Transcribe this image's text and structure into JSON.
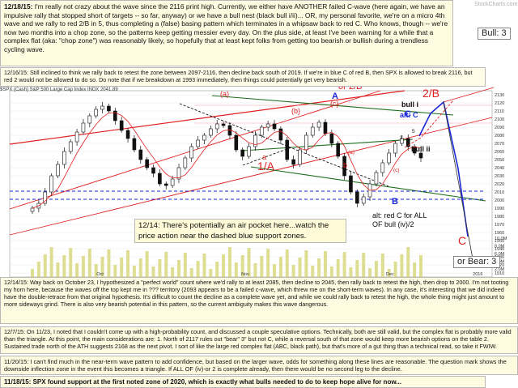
{
  "notes": {
    "top": {
      "date": "12/18/15:",
      "text": " I'm really not crazy about the wave since the 2116 print high.  Currently, we either have ANOTHER failed C-wave (here again, we have an impulsive rally that stopped short of targets -- so far, anyway) or we have a bull nest (black bull i/ii)... OR, my personal favorite, we're on a micro 4th wave and we rally to red 2/B in 5, thus completing a (false) basing pattern which terminates in a whipsaw back to red C.  Who knows, though -- we're now two months into a chop zone, so the patterns keep getting messier every day.  On the plus side, at least I've been warning for a while that a complex flat (aka: \"chop zone\") was reasonably likely, so hopefully that at least kept folks from getting too bearish or bullish during a trendless cycling wave."
    },
    "n1216": {
      "date": "12/16/15:",
      "text": " Still inclined to think we rally back to retest the zone between 2097-2116, then decline back south of 2019.  If we're in blue C of red B, then SPX is allowed to break 2116, but red 2 would not be allowed to do so.  Do note that if we breakdown at 1993 immediately, then things could potentially get very bearish."
    },
    "n1214": {
      "text": "12/14:  There's potentially an air pocket here...watch the price action near the dashed blue support zones."
    },
    "a": {
      "date": "12/14/15:",
      "text": " Way back on October 23, I hypothesized a \"perfect world\" count where we'd rally to at least 2085, then decline to 2045, then rally back to retest the high, then drop to 2000. I'm not tooting my horn here, because the waves off the top kept me in ??? territory (2093 appears to be a failed c-wave, which threw me on the short-term waves).  In any case, it's interesting that we did indeed have the double-retrace from that original hypothesis.  It's difficult to count the decline as a complete wave yet, and while we could rally back to retest the high, the whole thing might just amount to more sideways grind.  There is also very bearish potential in this pattern, so the current ambiguity makes this wave dangerous."
    },
    "b": {
      "date": "12/7/15:",
      "text": " On 11/23, I noted that I couldn't come up with a high-probability count, and discussed a couple speculative options.  Technically, both are still valid, but the complex flat is probably more valid than the triangle.  At this point, the main considerations are:  1.  North of 2117 rules out \"bear\" 3\" but not C, while a reversal south of that zone would keep more bearish options on the table 2. Sustained trade north of the ATH suggests 2168 as the next pivot.  I sort of like the large red complex flat (ABC, black path), but that's more of a gut thing than a technical read, so take it FWIW."
    },
    "c": {
      "date": "11/20/15:",
      "text": " I can't find much in the near-term wave pattern to add confidence, but based on the larger wave, odds for something along these lines are reasonable.  The question mark shows the downside inflection zone in the event this becomes a triangle.  If ALL OF (iv)-or 2 is complete already, then there would be no second leg to the decline."
    },
    "d": {
      "date": "11/18/15:",
      "text": "  SPX found support at the first noted zone of 2020, which is exactly what bulls needed to do to keep hope alive for now..."
    }
  },
  "header_text": "$SPX (Cash) S&P 500 Large Cap Index INDX",
  "header_price": "2041.89",
  "watermark": "StockCharts.com",
  "labels": {
    "bull3": "Bull: 3",
    "bear3": "or Bear: 3",
    "or2b_top": "2/B",
    "or2b": "or 2/B",
    "blueA": "A",
    "red_a_paren": "(a)",
    "red_b_paren": "(b)",
    "red_c_paren": "(c)",
    "red_1a": "1/A",
    "red_C": "C",
    "red_b_small": "b",
    "red_a_small": "a",
    "blue_c_top": "C",
    "blue_B": "B",
    "bull_i": "bull i",
    "alt_c": "alt: C",
    "bull_ii": "bull ii",
    "alt_red_c": "alt: red C for ALL",
    "alt_red_c2": "OF bull (iv)/2",
    "small_3": "3",
    "small_4": "4",
    "small_5": "5",
    "small_c_ital": "(c)",
    "small_a_paren": "(a)"
  },
  "colors": {
    "red": "#e02020",
    "blue": "#1a28d8",
    "green": "#1f8f1f",
    "note_bg": "#fffbe0",
    "candle": "#111111",
    "volume": "#d8d880"
  },
  "chart_data": {
    "type": "candlestick",
    "title": "$SPX (Cash) S&P 500 Large Cap Index INDX",
    "y_axis_ticks": [
      2130,
      2120,
      2110,
      2100,
      2090,
      2080,
      2070,
      2060,
      2050,
      2040,
      2030,
      2020,
      2010,
      2000,
      1990,
      1980,
      1970,
      1960,
      1950,
      1940,
      1930,
      1920,
      1910
    ],
    "x_axis_ticks": [
      "Oct",
      "Nov",
      "Dec",
      "2016"
    ],
    "volume_labels": [
      "10.0M",
      "8.0M",
      "6.0M",
      "4.0M",
      "2.0M"
    ],
    "price_path": [
      1990,
      1996,
      2010,
      2030,
      2044,
      2060,
      2072,
      2084,
      2095,
      2104,
      2112,
      2116,
      2110,
      2098,
      2086,
      2076,
      2062,
      2050,
      2040,
      2033,
      2020,
      2018,
      2026,
      2040,
      2052,
      2066,
      2074,
      2080,
      2088,
      2094,
      2092,
      2080,
      2062,
      2054,
      2066,
      2080,
      2090,
      2094,
      2088,
      2074,
      2050,
      2044,
      2062,
      2080,
      2090,
      2096,
      2082,
      2070,
      2054,
      2030,
      2010,
      1996,
      2004,
      2020,
      2034,
      2046,
      2058,
      2070,
      2076,
      2066,
      2058,
      2052
    ]
  }
}
